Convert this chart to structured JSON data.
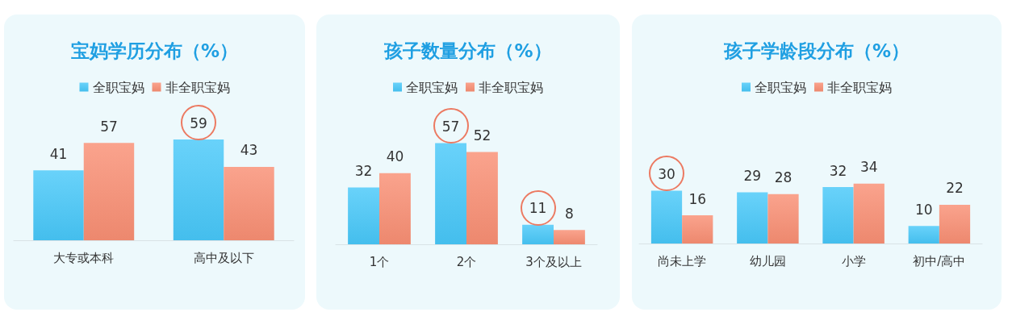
{
  "chart_data": [
    {
      "type": "bar",
      "title": "宝妈学历分布（%）",
      "categories": [
        "大专或本科",
        "高中及以下"
      ],
      "series": [
        {
          "name": "全职宝妈",
          "color": "#48c8f9",
          "values": [
            41,
            59
          ]
        },
        {
          "name": "非全职宝妈",
          "color": "#f98f74",
          "values": [
            57,
            43
          ]
        }
      ],
      "data_labels": true,
      "legend": "top",
      "grid": false,
      "tick_labels": "x"
    },
    {
      "type": "bar",
      "title": "孩子数量分布（%）",
      "categories": [
        "1个",
        "2个",
        "3个及以上"
      ],
      "series": [
        {
          "name": "全职宝妈",
          "color": "#48c8f9",
          "values": [
            32,
            57,
            11
          ]
        },
        {
          "name": "非全职宝妈",
          "color": "#f98f74",
          "values": [
            40,
            52,
            8
          ]
        }
      ],
      "data_labels": true,
      "legend": "top",
      "grid": false,
      "tick_labels": "x"
    },
    {
      "type": "bar",
      "title": "孩子学龄段分布（%）",
      "categories": [
        "尚未上学",
        "幼儿园",
        "小学",
        "初中/高中"
      ],
      "series": [
        {
          "name": "全职宝妈",
          "color": "#48c8f9",
          "values": [
            30,
            29,
            32,
            10
          ]
        },
        {
          "name": "非全职宝妈",
          "color": "#f98f74",
          "values": [
            16,
            28,
            34,
            22
          ]
        }
      ],
      "data_labels": true,
      "legend": "top",
      "grid": false,
      "tick_labels": "x"
    }
  ]
}
